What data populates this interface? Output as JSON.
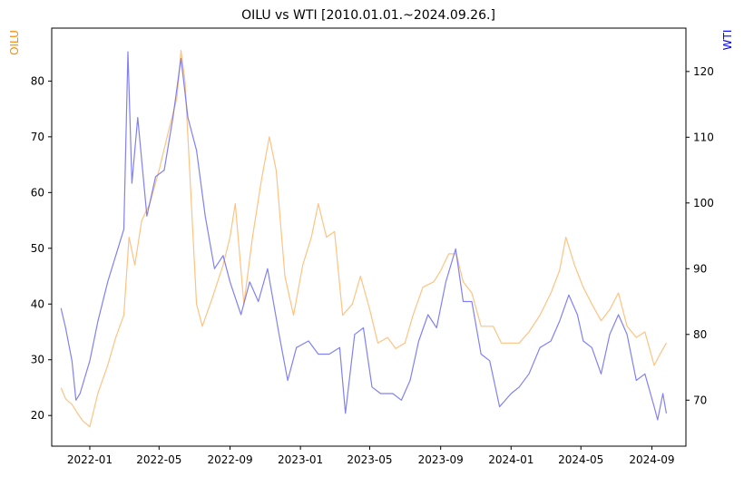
{
  "chart_data": {
    "type": "line",
    "title": "OILU vs WTI [2010.01.01.~2024.09.26.]",
    "xlabel": "",
    "x_ticks": [
      "2022-01",
      "2022-05",
      "2022-09",
      "2023-01",
      "2023-05",
      "2023-09",
      "2024-01",
      "2024-05",
      "2024-09"
    ],
    "x_range": [
      "2021-10-27",
      "2024-10-30"
    ],
    "grid": false,
    "legend": "none",
    "y_left": {
      "label": "OILU",
      "color": "#ff8c00",
      "range": [
        14.5,
        89.5
      ],
      "ticks": [
        20,
        30,
        40,
        50,
        60,
        70,
        80
      ]
    },
    "y_right": {
      "label": "WTI",
      "color": "#0000ff",
      "range": [
        63.0,
        126.6
      ],
      "ticks": [
        70,
        80,
        90,
        100,
        110,
        120
      ]
    },
    "series": [
      {
        "name": "OILU",
        "axis": "left",
        "color": "#fdb96c",
        "points": [
          [
            "2021-11-12",
            25
          ],
          [
            "2021-11-20",
            23
          ],
          [
            "2021-12-01",
            22
          ],
          [
            "2021-12-10",
            20.5
          ],
          [
            "2021-12-20",
            19
          ],
          [
            "2022-01-01",
            18
          ],
          [
            "2022-01-15",
            24
          ],
          [
            "2022-02-01",
            29
          ],
          [
            "2022-02-15",
            34
          ],
          [
            "2022-03-01",
            38
          ],
          [
            "2022-03-10",
            52
          ],
          [
            "2022-03-20",
            47
          ],
          [
            "2022-04-01",
            55
          ],
          [
            "2022-04-15",
            58
          ],
          [
            "2022-05-01",
            64
          ],
          [
            "2022-05-15",
            70
          ],
          [
            "2022-06-01",
            77
          ],
          [
            "2022-06-08",
            85.5
          ],
          [
            "2022-06-15",
            80
          ],
          [
            "2022-06-25",
            60
          ],
          [
            "2022-07-05",
            40
          ],
          [
            "2022-07-15",
            36
          ],
          [
            "2022-08-01",
            41
          ],
          [
            "2022-08-20",
            47
          ],
          [
            "2022-09-01",
            52
          ],
          [
            "2022-09-10",
            58
          ],
          [
            "2022-09-25",
            40
          ],
          [
            "2022-10-10",
            52
          ],
          [
            "2022-10-25",
            62
          ],
          [
            "2022-11-08",
            70
          ],
          [
            "2022-11-20",
            64
          ],
          [
            "2022-12-05",
            45
          ],
          [
            "2022-12-20",
            38
          ],
          [
            "2023-01-05",
            47
          ],
          [
            "2023-01-20",
            52
          ],
          [
            "2023-02-01",
            58
          ],
          [
            "2023-02-15",
            52
          ],
          [
            "2023-03-01",
            53
          ],
          [
            "2023-03-15",
            38
          ],
          [
            "2023-04-01",
            40
          ],
          [
            "2023-04-15",
            45
          ],
          [
            "2023-05-01",
            39
          ],
          [
            "2023-05-15",
            33
          ],
          [
            "2023-06-01",
            34
          ],
          [
            "2023-06-15",
            32
          ],
          [
            "2023-07-01",
            33
          ],
          [
            "2023-07-15",
            38
          ],
          [
            "2023-08-01",
            43
          ],
          [
            "2023-08-20",
            44
          ],
          [
            "2023-09-01",
            46
          ],
          [
            "2023-09-15",
            49
          ],
          [
            "2023-09-28",
            49
          ],
          [
            "2023-10-10",
            44
          ],
          [
            "2023-10-25",
            42
          ],
          [
            "2023-11-10",
            36
          ],
          [
            "2023-12-01",
            36
          ],
          [
            "2023-12-15",
            33
          ],
          [
            "2024-01-01",
            33
          ],
          [
            "2024-01-15",
            33
          ],
          [
            "2024-02-01",
            35
          ],
          [
            "2024-02-20",
            38
          ],
          [
            "2024-03-10",
            42
          ],
          [
            "2024-03-25",
            46
          ],
          [
            "2024-04-05",
            52
          ],
          [
            "2024-04-20",
            47
          ],
          [
            "2024-05-05",
            43
          ],
          [
            "2024-05-20",
            40
          ],
          [
            "2024-06-05",
            37
          ],
          [
            "2024-06-20",
            39
          ],
          [
            "2024-07-05",
            42
          ],
          [
            "2024-07-20",
            36
          ],
          [
            "2024-08-05",
            34
          ],
          [
            "2024-08-20",
            35
          ],
          [
            "2024-09-05",
            29
          ],
          [
            "2024-09-15",
            31
          ],
          [
            "2024-09-26",
            33
          ]
        ]
      },
      {
        "name": "WTI",
        "axis": "right",
        "color": "#6b6bf0",
        "points": [
          [
            "2021-11-12",
            84
          ],
          [
            "2021-11-20",
            81
          ],
          [
            "2021-12-01",
            76
          ],
          [
            "2021-12-08",
            70
          ],
          [
            "2021-12-15",
            71
          ],
          [
            "2022-01-01",
            76
          ],
          [
            "2022-01-15",
            82
          ],
          [
            "2022-02-01",
            88
          ],
          [
            "2022-02-15",
            92
          ],
          [
            "2022-03-01",
            96
          ],
          [
            "2022-03-08",
            123
          ],
          [
            "2022-03-15",
            103
          ],
          [
            "2022-03-25",
            113
          ],
          [
            "2022-04-10",
            98
          ],
          [
            "2022-04-25",
            104
          ],
          [
            "2022-05-10",
            105
          ],
          [
            "2022-05-25",
            113
          ],
          [
            "2022-06-08",
            122
          ],
          [
            "2022-06-20",
            113
          ],
          [
            "2022-07-05",
            108
          ],
          [
            "2022-07-20",
            98
          ],
          [
            "2022-08-05",
            90
          ],
          [
            "2022-08-20",
            92
          ],
          [
            "2022-09-01",
            88
          ],
          [
            "2022-09-20",
            83
          ],
          [
            "2022-10-05",
            88
          ],
          [
            "2022-10-20",
            85
          ],
          [
            "2022-11-05",
            90
          ],
          [
            "2022-11-25",
            80
          ],
          [
            "2022-12-10",
            73
          ],
          [
            "2022-12-25",
            78
          ],
          [
            "2023-01-15",
            79
          ],
          [
            "2023-02-01",
            77
          ],
          [
            "2023-02-20",
            77
          ],
          [
            "2023-03-10",
            78
          ],
          [
            "2023-03-20",
            68
          ],
          [
            "2023-04-05",
            80
          ],
          [
            "2023-04-20",
            81
          ],
          [
            "2023-05-05",
            72
          ],
          [
            "2023-05-20",
            71
          ],
          [
            "2023-06-10",
            71
          ],
          [
            "2023-06-25",
            70
          ],
          [
            "2023-07-10",
            73
          ],
          [
            "2023-07-25",
            79
          ],
          [
            "2023-08-10",
            83
          ],
          [
            "2023-08-25",
            81
          ],
          [
            "2023-09-10",
            88
          ],
          [
            "2023-09-27",
            93
          ],
          [
            "2023-10-10",
            85
          ],
          [
            "2023-10-25",
            85
          ],
          [
            "2023-11-10",
            77
          ],
          [
            "2023-11-25",
            76
          ],
          [
            "2023-12-12",
            69
          ],
          [
            "2024-01-01",
            71
          ],
          [
            "2024-01-15",
            72
          ],
          [
            "2024-02-01",
            74
          ],
          [
            "2024-02-20",
            78
          ],
          [
            "2024-03-10",
            79
          ],
          [
            "2024-03-25",
            82
          ],
          [
            "2024-04-10",
            86
          ],
          [
            "2024-04-25",
            83
          ],
          [
            "2024-05-05",
            79
          ],
          [
            "2024-05-20",
            78
          ],
          [
            "2024-06-05",
            74
          ],
          [
            "2024-06-20",
            80
          ],
          [
            "2024-07-05",
            83
          ],
          [
            "2024-07-20",
            80
          ],
          [
            "2024-08-05",
            73
          ],
          [
            "2024-08-20",
            74
          ],
          [
            "2024-09-05",
            69
          ],
          [
            "2024-09-11",
            67
          ],
          [
            "2024-09-20",
            71
          ],
          [
            "2024-09-26",
            68
          ]
        ]
      }
    ]
  }
}
